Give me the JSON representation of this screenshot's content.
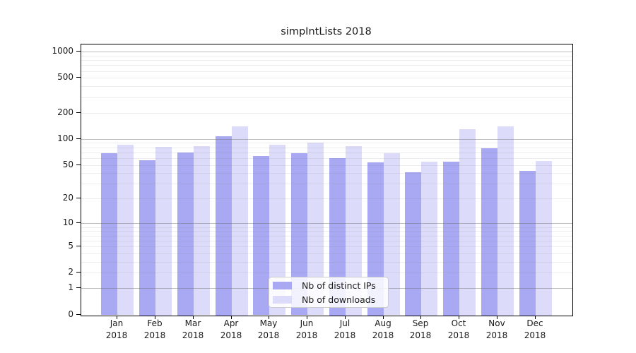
{
  "chart_data": {
    "type": "bar",
    "title": "simpIntLists 2018",
    "categories": [
      "Jan",
      "Feb",
      "Mar",
      "Apr",
      "May",
      "Jun",
      "Jul",
      "Aug",
      "Sep",
      "Oct",
      "Nov",
      "Dec"
    ],
    "category_year": "2018",
    "series": [
      {
        "name": "Nb of distinct IPs",
        "color": "#a8a8f3",
        "values": [
          68,
          57,
          70,
          108,
          63,
          68,
          60,
          54,
          41,
          55,
          78,
          43
        ]
      },
      {
        "name": "Nb of downloads",
        "color": "#dcdcfa",
        "values": [
          85,
          81,
          82,
          139,
          85,
          90,
          83,
          68,
          55,
          129,
          139,
          56
        ]
      }
    ],
    "xlabel": "",
    "ylabel": "",
    "scale": "log1p",
    "ylim": [
      0,
      1100
    ],
    "yticks": [
      0,
      1,
      2,
      5,
      10,
      20,
      50,
      100,
      200,
      500,
      1000
    ],
    "major_gridlines": [
      1,
      10,
      100,
      1000
    ],
    "minor_gridlines": [
      2,
      3,
      4,
      5,
      6,
      7,
      8,
      9,
      20,
      30,
      40,
      50,
      60,
      70,
      80,
      90,
      200,
      300,
      400,
      500,
      600,
      700,
      800,
      900
    ],
    "grid": true,
    "legend_position": "bottom-center-inside"
  }
}
